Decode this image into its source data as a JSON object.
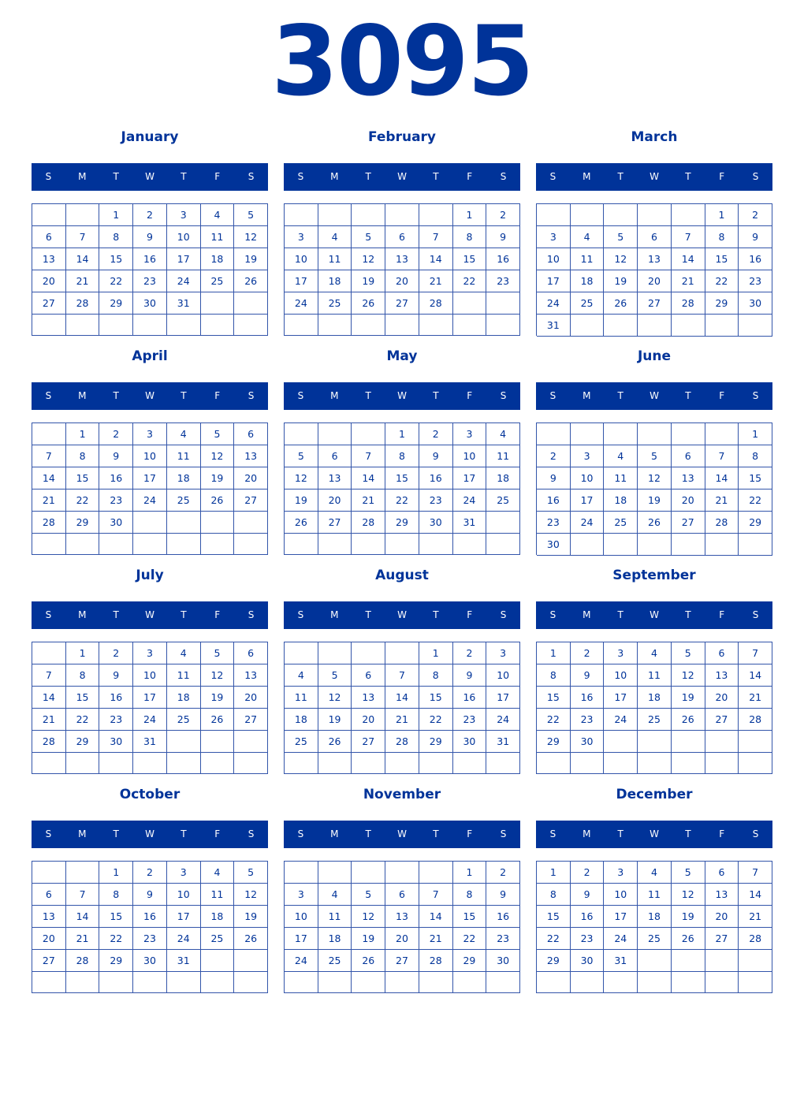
{
  "year": "3095",
  "weekdays": [
    "S",
    "M",
    "T",
    "W",
    "T",
    "F",
    "S"
  ],
  "colors": {
    "primary": "#003399",
    "header_text": "#ffffff"
  },
  "months": [
    {
      "name": "January",
      "weeks": [
        [
          "",
          "",
          "1",
          "2",
          "3",
          "4",
          "5"
        ],
        [
          "6",
          "7",
          "8",
          "9",
          "10",
          "11",
          "12"
        ],
        [
          "13",
          "14",
          "15",
          "16",
          "17",
          "18",
          "19"
        ],
        [
          "20",
          "21",
          "22",
          "23",
          "24",
          "25",
          "26"
        ],
        [
          "27",
          "28",
          "29",
          "30",
          "31",
          "",
          ""
        ],
        [
          "",
          "",
          "",
          "",
          "",
          "",
          ""
        ]
      ]
    },
    {
      "name": "February",
      "weeks": [
        [
          "",
          "",
          "",
          "",
          "",
          "1",
          "2"
        ],
        [
          "3",
          "4",
          "5",
          "6",
          "7",
          "8",
          "9"
        ],
        [
          "10",
          "11",
          "12",
          "13",
          "14",
          "15",
          "16"
        ],
        [
          "17",
          "18",
          "19",
          "20",
          "21",
          "22",
          "23"
        ],
        [
          "24",
          "25",
          "26",
          "27",
          "28",
          "",
          ""
        ],
        [
          "",
          "",
          "",
          "",
          "",
          "",
          ""
        ]
      ]
    },
    {
      "name": "March",
      "weeks": [
        [
          "",
          "",
          "",
          "",
          "",
          "1",
          "2"
        ],
        [
          "3",
          "4",
          "5",
          "6",
          "7",
          "8",
          "9"
        ],
        [
          "10",
          "11",
          "12",
          "13",
          "14",
          "15",
          "16"
        ],
        [
          "17",
          "18",
          "19",
          "20",
          "21",
          "22",
          "23"
        ],
        [
          "24",
          "25",
          "26",
          "27",
          "28",
          "29",
          "30"
        ],
        [
          "31",
          "",
          "",
          "",
          "",
          "",
          ""
        ]
      ]
    },
    {
      "name": "April",
      "weeks": [
        [
          "",
          "1",
          "2",
          "3",
          "4",
          "5",
          "6"
        ],
        [
          "7",
          "8",
          "9",
          "10",
          "11",
          "12",
          "13"
        ],
        [
          "14",
          "15",
          "16",
          "17",
          "18",
          "19",
          "20"
        ],
        [
          "21",
          "22",
          "23",
          "24",
          "25",
          "26",
          "27"
        ],
        [
          "28",
          "29",
          "30",
          "",
          "",
          "",
          ""
        ],
        [
          "",
          "",
          "",
          "",
          "",
          "",
          ""
        ]
      ]
    },
    {
      "name": "May",
      "weeks": [
        [
          "",
          "",
          "",
          "1",
          "2",
          "3",
          "4"
        ],
        [
          "5",
          "6",
          "7",
          "8",
          "9",
          "10",
          "11"
        ],
        [
          "12",
          "13",
          "14",
          "15",
          "16",
          "17",
          "18"
        ],
        [
          "19",
          "20",
          "21",
          "22",
          "23",
          "24",
          "25"
        ],
        [
          "26",
          "27",
          "28",
          "29",
          "30",
          "31",
          ""
        ],
        [
          "",
          "",
          "",
          "",
          "",
          "",
          ""
        ]
      ]
    },
    {
      "name": "June",
      "weeks": [
        [
          "",
          "",
          "",
          "",
          "",
          "",
          "1"
        ],
        [
          "2",
          "3",
          "4",
          "5",
          "6",
          "7",
          "8"
        ],
        [
          "9",
          "10",
          "11",
          "12",
          "13",
          "14",
          "15"
        ],
        [
          "16",
          "17",
          "18",
          "19",
          "20",
          "21",
          "22"
        ],
        [
          "23",
          "24",
          "25",
          "26",
          "27",
          "28",
          "29"
        ],
        [
          "30",
          "",
          "",
          "",
          "",
          "",
          ""
        ]
      ]
    },
    {
      "name": "July",
      "weeks": [
        [
          "",
          "1",
          "2",
          "3",
          "4",
          "5",
          "6"
        ],
        [
          "7",
          "8",
          "9",
          "10",
          "11",
          "12",
          "13"
        ],
        [
          "14",
          "15",
          "16",
          "17",
          "18",
          "19",
          "20"
        ],
        [
          "21",
          "22",
          "23",
          "24",
          "25",
          "26",
          "27"
        ],
        [
          "28",
          "29",
          "30",
          "31",
          "",
          "",
          ""
        ],
        [
          "",
          "",
          "",
          "",
          "",
          "",
          ""
        ]
      ]
    },
    {
      "name": "August",
      "weeks": [
        [
          "",
          "",
          "",
          "",
          "1",
          "2",
          "3"
        ],
        [
          "4",
          "5",
          "6",
          "7",
          "8",
          "9",
          "10"
        ],
        [
          "11",
          "12",
          "13",
          "14",
          "15",
          "16",
          "17"
        ],
        [
          "18",
          "19",
          "20",
          "21",
          "22",
          "23",
          "24"
        ],
        [
          "25",
          "26",
          "27",
          "28",
          "29",
          "30",
          "31"
        ],
        [
          "",
          "",
          "",
          "",
          "",
          "",
          ""
        ]
      ]
    },
    {
      "name": "September",
      "weeks": [
        [
          "1",
          "2",
          "3",
          "4",
          "5",
          "6",
          "7"
        ],
        [
          "8",
          "9",
          "10",
          "11",
          "12",
          "13",
          "14"
        ],
        [
          "15",
          "16",
          "17",
          "18",
          "19",
          "20",
          "21"
        ],
        [
          "22",
          "23",
          "24",
          "25",
          "26",
          "27",
          "28"
        ],
        [
          "29",
          "30",
          "",
          "",
          "",
          "",
          ""
        ],
        [
          "",
          "",
          "",
          "",
          "",
          "",
          ""
        ]
      ]
    },
    {
      "name": "October",
      "weeks": [
        [
          "",
          "",
          "1",
          "2",
          "3",
          "4",
          "5"
        ],
        [
          "6",
          "7",
          "8",
          "9",
          "10",
          "11",
          "12"
        ],
        [
          "13",
          "14",
          "15",
          "16",
          "17",
          "18",
          "19"
        ],
        [
          "20",
          "21",
          "22",
          "23",
          "24",
          "25",
          "26"
        ],
        [
          "27",
          "28",
          "29",
          "30",
          "31",
          "",
          ""
        ],
        [
          "",
          "",
          "",
          "",
          "",
          "",
          ""
        ]
      ]
    },
    {
      "name": "November",
      "weeks": [
        [
          "",
          "",
          "",
          "",
          "",
          "1",
          "2"
        ],
        [
          "3",
          "4",
          "5",
          "6",
          "7",
          "8",
          "9"
        ],
        [
          "10",
          "11",
          "12",
          "13",
          "14",
          "15",
          "16"
        ],
        [
          "17",
          "18",
          "19",
          "20",
          "21",
          "22",
          "23"
        ],
        [
          "24",
          "25",
          "26",
          "27",
          "28",
          "29",
          "30"
        ],
        [
          "",
          "",
          "",
          "",
          "",
          "",
          ""
        ]
      ]
    },
    {
      "name": "December",
      "weeks": [
        [
          "1",
          "2",
          "3",
          "4",
          "5",
          "6",
          "7"
        ],
        [
          "8",
          "9",
          "10",
          "11",
          "12",
          "13",
          "14"
        ],
        [
          "15",
          "16",
          "17",
          "18",
          "19",
          "20",
          "21"
        ],
        [
          "22",
          "23",
          "24",
          "25",
          "26",
          "27",
          "28"
        ],
        [
          "29",
          "30",
          "31",
          "",
          "",
          "",
          ""
        ],
        [
          "",
          "",
          "",
          "",
          "",
          "",
          ""
        ]
      ]
    }
  ]
}
